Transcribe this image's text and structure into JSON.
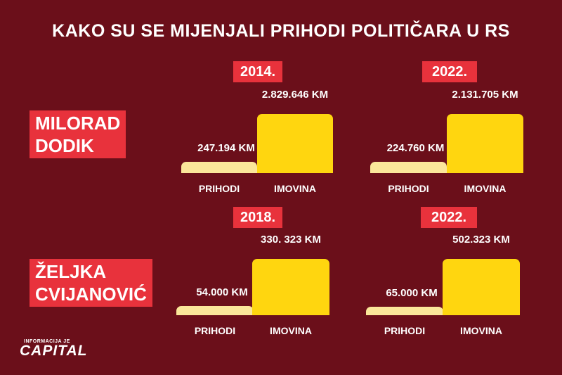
{
  "title": "KAKO SU SE MIJENJALI PRIHODI POLITIČARA U RS",
  "chart_data": [
    {
      "type": "bar",
      "person": [
        "MILORAD",
        "DODIK"
      ],
      "year": "2014.",
      "categories": [
        "PRIHODI",
        "IMOVINA"
      ],
      "values": [
        247194,
        2829646
      ],
      "labels": [
        "247.194 KM",
        "2.829.646 KM"
      ]
    },
    {
      "type": "bar",
      "person": [
        "MILORAD",
        "DODIK"
      ],
      "year": "2022.",
      "categories": [
        "PRIHODI",
        "IMOVINA"
      ],
      "values": [
        224760,
        2131705
      ],
      "labels": [
        "224.760 KM",
        "2.131.705 KM"
      ]
    },
    {
      "type": "bar",
      "person": [
        "ŽELJKA",
        "CVIJANOVIĆ"
      ],
      "year": "2018.",
      "categories": [
        "PRIHODI",
        "IMOVINA"
      ],
      "values": [
        54000,
        330323
      ],
      "labels": [
        "54.000 KM",
        "330. 323 KM"
      ]
    },
    {
      "type": "bar",
      "person": [
        "ŽELJKA",
        "CVIJANOVIĆ"
      ],
      "year": "2022.",
      "categories": [
        "PRIHODI",
        "IMOVINA"
      ],
      "values": [
        65000,
        502323
      ],
      "labels": [
        "65.000 KM",
        "502.323 KM"
      ]
    }
  ],
  "names": {
    "dodik": [
      "MILORAD",
      "DODIK"
    ],
    "cvijanovic": [
      "ŽELJKA",
      "CVIJANOVIĆ"
    ]
  },
  "logo": {
    "small": "INFORMACIJA JE",
    "big": "CAPITAL"
  },
  "colors": {
    "background": "#6b0f1a",
    "accent": "#e8323c",
    "prihodi": "#fbe69a",
    "imovina": "#ffd60f"
  }
}
